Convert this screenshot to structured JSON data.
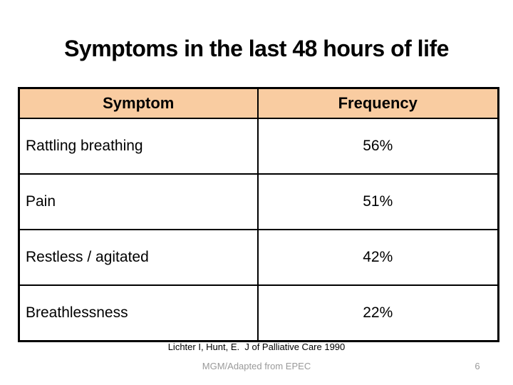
{
  "slide": {
    "title": "Symptoms in the last 48 hours of life",
    "table": {
      "columns": [
        "Symptom",
        "Frequency"
      ],
      "rows": [
        {
          "symptom": "Rattling breathing",
          "frequency": "56%"
        },
        {
          "symptom": "Pain",
          "frequency": "51%"
        },
        {
          "symptom": "Restless / agitated",
          "frequency": "42%"
        },
        {
          "symptom": "Breathlessness",
          "frequency": "22%"
        }
      ],
      "header_bg_color": "#f9cca1",
      "border_color": "#000000"
    },
    "footer": {
      "citation": "Lichter I, Hunt, E.  J of Palliative Care 1990",
      "attribution": "MGM/Adapted from EPEC",
      "page_number": "6",
      "muted_text_color": "#9a9a9a"
    }
  }
}
